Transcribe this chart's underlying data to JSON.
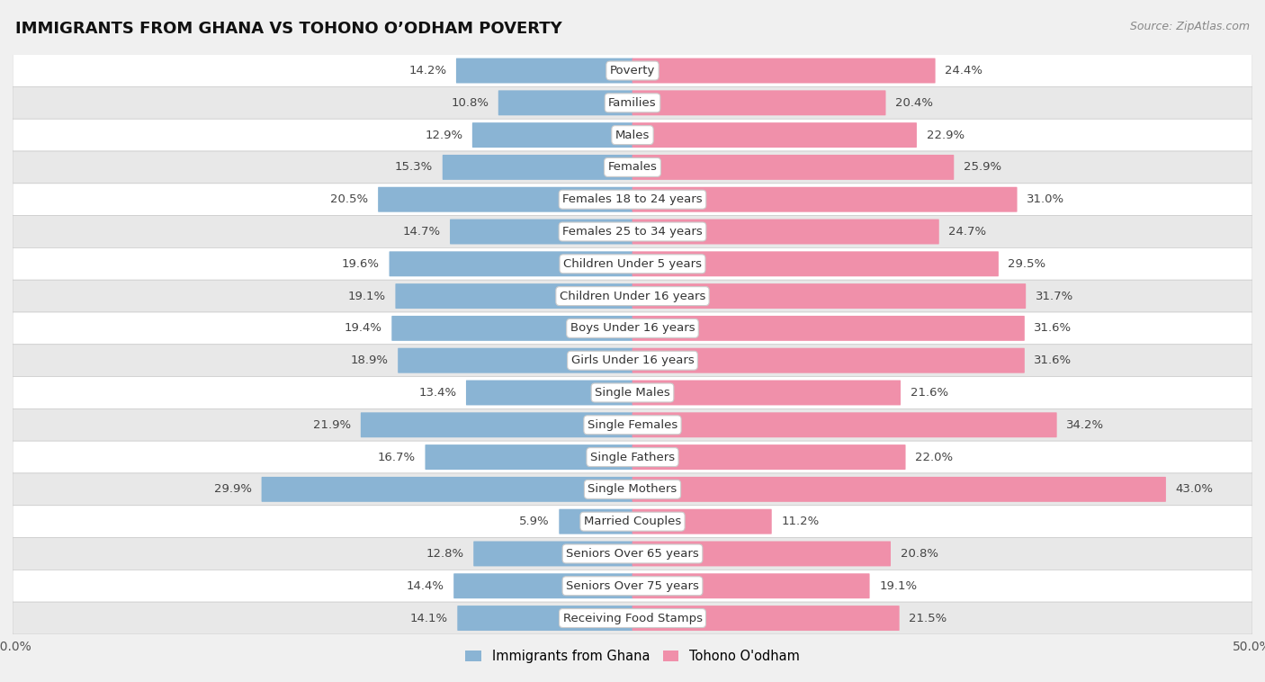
{
  "title": "IMMIGRANTS FROM GHANA VS TOHONO O’ODHAM POVERTY",
  "source": "Source: ZipAtlas.com",
  "categories": [
    "Poverty",
    "Families",
    "Males",
    "Females",
    "Females 18 to 24 years",
    "Females 25 to 34 years",
    "Children Under 5 years",
    "Children Under 16 years",
    "Boys Under 16 years",
    "Girls Under 16 years",
    "Single Males",
    "Single Females",
    "Single Fathers",
    "Single Mothers",
    "Married Couples",
    "Seniors Over 65 years",
    "Seniors Over 75 years",
    "Receiving Food Stamps"
  ],
  "ghana_values": [
    14.2,
    10.8,
    12.9,
    15.3,
    20.5,
    14.7,
    19.6,
    19.1,
    19.4,
    18.9,
    13.4,
    21.9,
    16.7,
    29.9,
    5.9,
    12.8,
    14.4,
    14.1
  ],
  "tohono_values": [
    24.4,
    20.4,
    22.9,
    25.9,
    31.0,
    24.7,
    29.5,
    31.7,
    31.6,
    31.6,
    21.6,
    34.2,
    22.0,
    43.0,
    11.2,
    20.8,
    19.1,
    21.5
  ],
  "ghana_color": "#8ab4d4",
  "tohono_color": "#f090aa",
  "row_color_odd": "#f0f0f0",
  "row_color_even": "#fafafa",
  "background_color": "#f0f0f0",
  "axis_limit": 50.0,
  "legend_ghana": "Immigrants from Ghana",
  "legend_tohono": "Tohono O'odham",
  "bar_height": 0.72,
  "label_fontsize": 9.5,
  "cat_fontsize": 9.5,
  "title_fontsize": 13,
  "source_fontsize": 9
}
